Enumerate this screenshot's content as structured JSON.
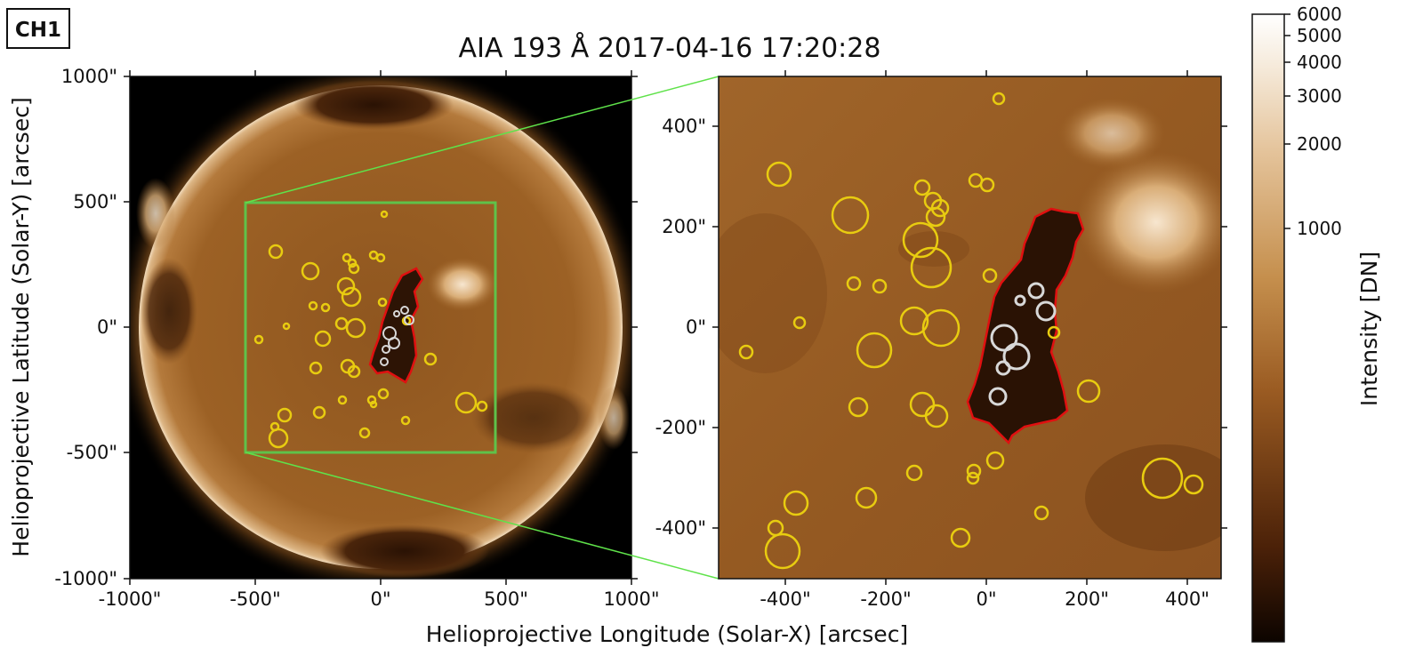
{
  "badge": "CH1",
  "title": "AIA 193 Å 2017-04-16 17:20:28",
  "left_panel": {
    "x_ticks": [
      "-1000\"",
      "-500\"",
      "0\"",
      "500\"",
      "1000\""
    ],
    "y_ticks": [
      "1000\"",
      "500\"",
      "0\"",
      "-500\"",
      "-1000\""
    ],
    "x_title": "Helioprojective Longitude (Solar-X) [arcsec]",
    "y_title": "Helioprojective Latitude (Solar-Y) [arcsec]"
  },
  "right_panel": {
    "x_ticks": [
      "-400\"",
      "-200\"",
      "0\"",
      "200\"",
      "400\""
    ],
    "y_ticks": [
      "400\"",
      "200\"",
      "0\"",
      "-200\"",
      "-400\""
    ]
  },
  "colorbar": {
    "title": "Intensity [DN]",
    "ticks": [
      "6000",
      "5000",
      "4000",
      "3000",
      "2000",
      "1000"
    ],
    "scale": "log"
  },
  "colors": {
    "sun_base": "#9a5e23",
    "disk_edge": "#d9b27e",
    "coronal_hole": "#3a1d08",
    "contour": "#e01010",
    "circles_yellow": "#e8cc10",
    "circles_white": "#d8d8d8",
    "zoom_box": "#5fc24a"
  }
}
